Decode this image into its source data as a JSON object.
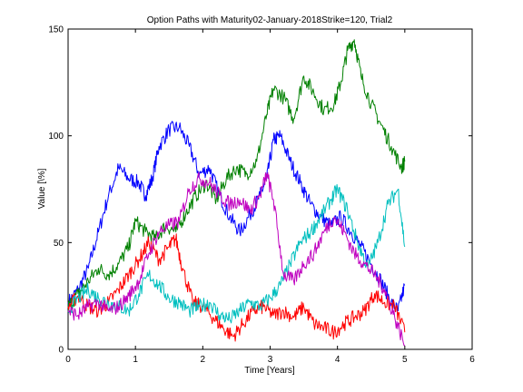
{
  "chart_data": {
    "type": "line",
    "title": "Option Paths with Maturity02-January-2018Strike=120, Trial2",
    "xlabel": "Time [Years]",
    "ylabel": "Value [\\%]",
    "xlim": [
      0,
      6
    ],
    "ylim": [
      0,
      150
    ],
    "xticks": [
      0,
      1,
      2,
      3,
      4,
      5,
      6
    ],
    "yticks": [
      0,
      50,
      100,
      150
    ],
    "grid": false,
    "series": [
      {
        "color": "#0000ff",
        "x": [
          0,
          0.15,
          0.3,
          0.45,
          0.6,
          0.75,
          0.9,
          1.05,
          1.15,
          1.25,
          1.35,
          1.5,
          1.65,
          1.8,
          1.95,
          2.1,
          2.25,
          2.4,
          2.55,
          2.7,
          2.85,
          2.95,
          3.05,
          3.15,
          3.3,
          3.45,
          3.6,
          3.75,
          3.9,
          4.05,
          4.2,
          4.35,
          4.5,
          4.65,
          4.8,
          4.9,
          5.0
        ],
        "values": [
          22,
          28,
          38,
          55,
          72,
          85,
          80,
          78,
          72,
          80,
          95,
          103,
          104,
          95,
          82,
          85,
          72,
          62,
          55,
          63,
          72,
          80,
          98,
          100,
          88,
          78,
          68,
          62,
          58,
          62,
          55,
          48,
          40,
          32,
          22,
          18,
          30
        ]
      },
      {
        "color": "#008000",
        "x": [
          0,
          0.15,
          0.3,
          0.45,
          0.6,
          0.75,
          0.9,
          1.0,
          1.15,
          1.3,
          1.45,
          1.6,
          1.75,
          1.9,
          2.05,
          2.2,
          2.35,
          2.5,
          2.65,
          2.8,
          2.95,
          3.05,
          3.2,
          3.35,
          3.5,
          3.65,
          3.8,
          3.95,
          4.05,
          4.15,
          4.25,
          4.35,
          4.5,
          4.65,
          4.8,
          4.95,
          5.0
        ],
        "values": [
          20,
          26,
          32,
          38,
          35,
          40,
          48,
          60,
          55,
          52,
          58,
          55,
          64,
          72,
          78,
          70,
          80,
          85,
          82,
          88,
          110,
          122,
          118,
          108,
          128,
          120,
          112,
          115,
          125,
          140,
          145,
          128,
          115,
          105,
          95,
          85,
          88
        ]
      },
      {
        "color": "#ff0000",
        "x": [
          0,
          0.15,
          0.3,
          0.45,
          0.6,
          0.75,
          0.9,
          1.05,
          1.2,
          1.35,
          1.5,
          1.6,
          1.7,
          1.85,
          2.0,
          2.15,
          2.3,
          2.45,
          2.6,
          2.75,
          2.9,
          3.05,
          3.2,
          3.35,
          3.5,
          3.65,
          3.8,
          3.95,
          4.1,
          4.25,
          4.4,
          4.55,
          4.7,
          4.85,
          5.0
        ],
        "values": [
          20,
          25,
          20,
          18,
          22,
          28,
          35,
          42,
          50,
          42,
          48,
          52,
          38,
          22,
          20,
          15,
          10,
          6,
          12,
          18,
          20,
          16,
          18,
          15,
          20,
          12,
          10,
          8,
          12,
          15,
          18,
          26,
          22,
          20,
          8
        ]
      },
      {
        "color": "#00bfbf",
        "x": [
          0,
          0.15,
          0.3,
          0.45,
          0.6,
          0.75,
          0.9,
          1.05,
          1.2,
          1.35,
          1.5,
          1.65,
          1.8,
          1.95,
          2.1,
          2.25,
          2.4,
          2.55,
          2.7,
          2.85,
          3.0,
          3.15,
          3.3,
          3.45,
          3.6,
          3.75,
          3.9,
          4.0,
          4.15,
          4.3,
          4.45,
          4.6,
          4.75,
          4.9,
          5.0
        ],
        "values": [
          18,
          24,
          28,
          24,
          22,
          20,
          18,
          26,
          35,
          30,
          24,
          22,
          18,
          20,
          22,
          16,
          14,
          18,
          22,
          20,
          24,
          30,
          40,
          50,
          55,
          62,
          70,
          75,
          65,
          50,
          38,
          50,
          68,
          75,
          48
        ]
      },
      {
        "color": "#bf00bf",
        "x": [
          0,
          0.15,
          0.3,
          0.45,
          0.6,
          0.75,
          0.9,
          1.05,
          1.2,
          1.35,
          1.5,
          1.65,
          1.8,
          1.95,
          2.1,
          2.25,
          2.4,
          2.55,
          2.7,
          2.85,
          2.95,
          3.05,
          3.2,
          3.35,
          3.5,
          3.65,
          3.8,
          3.95,
          4.1,
          4.25,
          4.4,
          4.55,
          4.7,
          4.85,
          5.0
        ],
        "values": [
          18,
          16,
          20,
          22,
          18,
          20,
          25,
          32,
          45,
          55,
          58,
          60,
          75,
          80,
          78,
          72,
          68,
          70,
          65,
          72,
          82,
          70,
          35,
          32,
          40,
          45,
          55,
          62,
          55,
          45,
          40,
          35,
          28,
          15,
          2
        ]
      }
    ]
  }
}
